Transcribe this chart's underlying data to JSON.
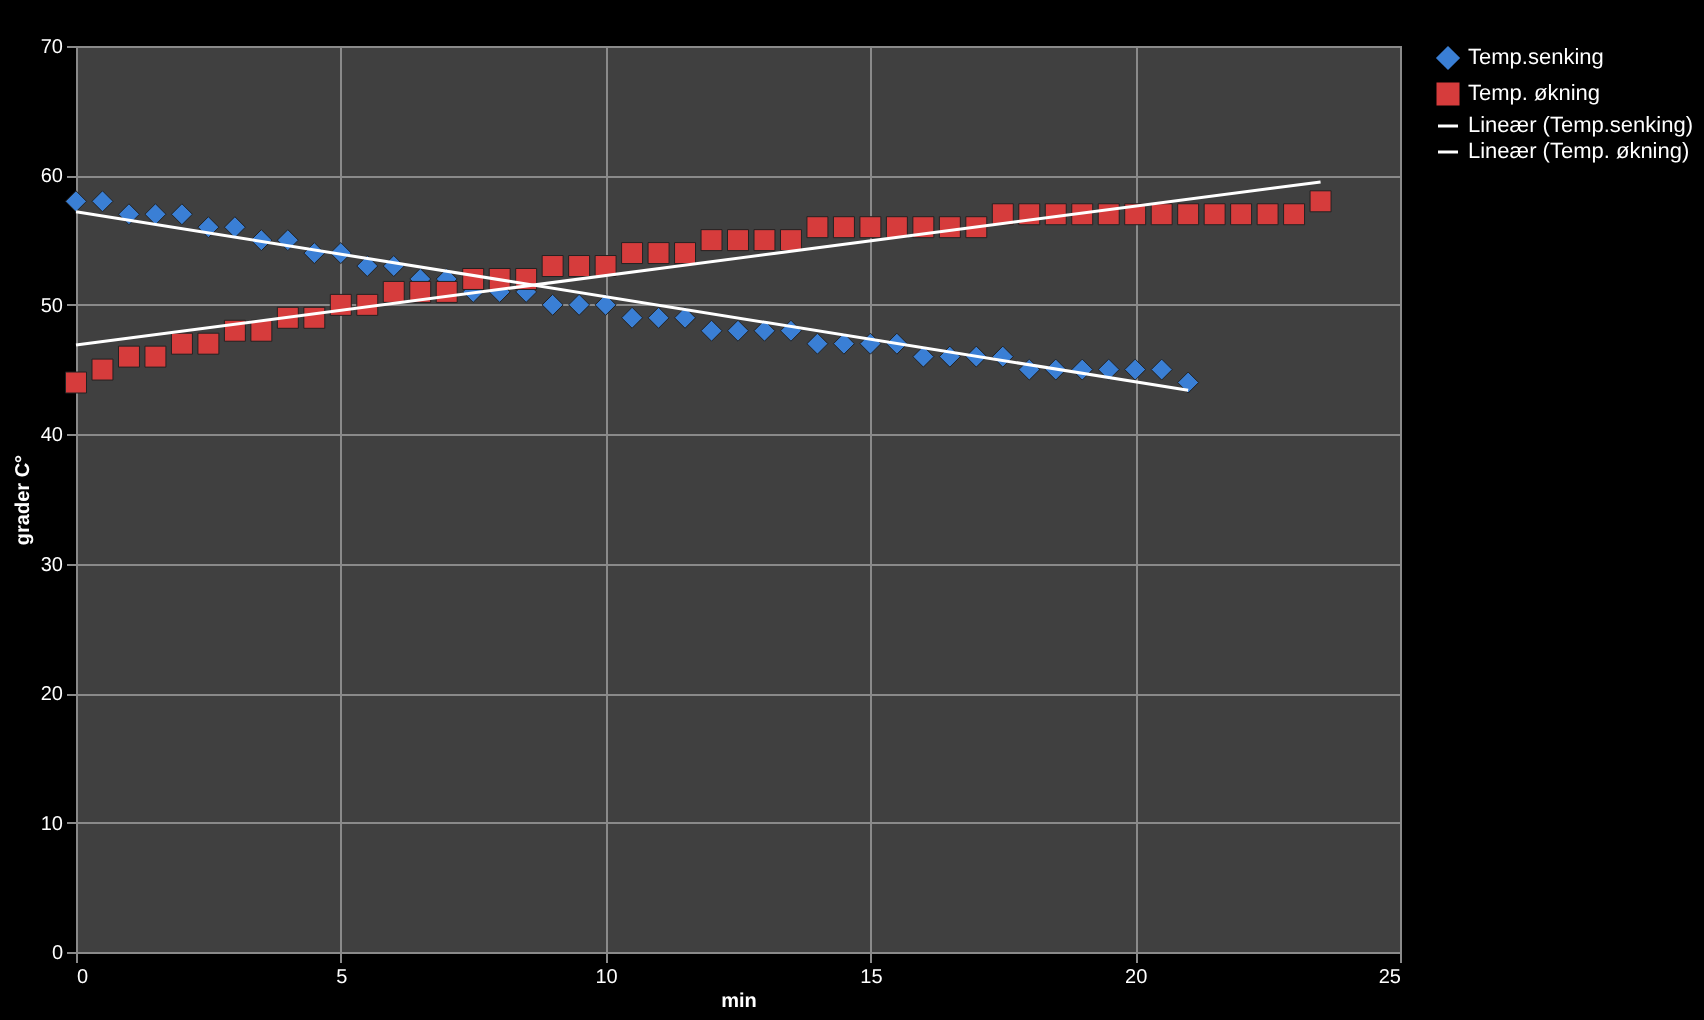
{
  "chart_data": {
    "type": "scatter",
    "xlabel": "min",
    "ylabel": "grader C°",
    "xlim": [
      0,
      25
    ],
    "xticks": [
      0,
      5,
      10,
      15,
      20,
      25
    ],
    "ylim": [
      0,
      70
    ],
    "yticks": [
      0,
      10,
      20,
      30,
      40,
      50,
      60,
      70
    ],
    "grid": true,
    "legend": "right",
    "series": [
      {
        "name": "Temp.senking",
        "type": "scatter",
        "marker": "diamond",
        "color": "#3a7fd5",
        "x": [
          0,
          0.5,
          1,
          1.5,
          2,
          2.5,
          3,
          3.5,
          4,
          4.5,
          5,
          5.5,
          6,
          6.5,
          7,
          7.5,
          8,
          8.5,
          9,
          9.5,
          10,
          10.5,
          11,
          11.5,
          12,
          12.5,
          13,
          13.5,
          14,
          14.5,
          15,
          15.5,
          16,
          16.5,
          17,
          17.5,
          18,
          18.5,
          19,
          19.5,
          20,
          20.5,
          21
        ],
        "values": [
          58,
          58,
          57,
          57,
          57,
          56,
          56,
          55,
          55,
          54,
          54,
          53,
          53,
          52,
          52,
          51,
          51,
          51,
          50,
          50,
          50,
          49,
          49,
          49,
          48,
          48,
          48,
          48,
          47,
          47,
          47,
          47,
          46,
          46,
          46,
          46,
          45,
          45,
          45,
          45,
          45,
          45,
          44
        ]
      },
      {
        "name": "Temp. økning",
        "type": "scatter",
        "marker": "square",
        "color": "#d63c3c",
        "x": [
          0,
          0.5,
          1,
          1.5,
          2,
          2.5,
          3,
          3.5,
          4,
          4.5,
          5,
          5.5,
          6,
          6.5,
          7,
          7.5,
          8,
          8.5,
          9,
          9.5,
          10,
          10.5,
          11,
          11.5,
          12,
          12.5,
          13,
          13.5,
          14,
          14.5,
          15,
          15.5,
          16,
          16.5,
          17,
          17.5,
          18,
          18.5,
          19,
          19.5,
          20,
          20.5,
          21,
          21.5,
          22,
          22.5,
          23,
          23.5
        ],
        "values": [
          44,
          45,
          46,
          46,
          47,
          47,
          48,
          48,
          49,
          49,
          50,
          50,
          51,
          51,
          51,
          52,
          52,
          52,
          53,
          53,
          53,
          54,
          54,
          54,
          55,
          55,
          55,
          55,
          56,
          56,
          56,
          56,
          56,
          56,
          56,
          57,
          57,
          57,
          57,
          57,
          57,
          57,
          57,
          57,
          57,
          57,
          57,
          58
        ]
      },
      {
        "name": "Lineær (Temp.senking)",
        "type": "line",
        "line_style": "solid",
        "color": "#ffffff",
        "x": [
          0,
          21
        ],
        "values": [
          57.2,
          43.4
        ]
      },
      {
        "name": "Lineær (Temp. økning)",
        "type": "line",
        "line_style": "solid",
        "color": "#ffffff",
        "x": [
          0,
          23.5
        ],
        "values": [
          46.9,
          59.5
        ]
      }
    ]
  }
}
